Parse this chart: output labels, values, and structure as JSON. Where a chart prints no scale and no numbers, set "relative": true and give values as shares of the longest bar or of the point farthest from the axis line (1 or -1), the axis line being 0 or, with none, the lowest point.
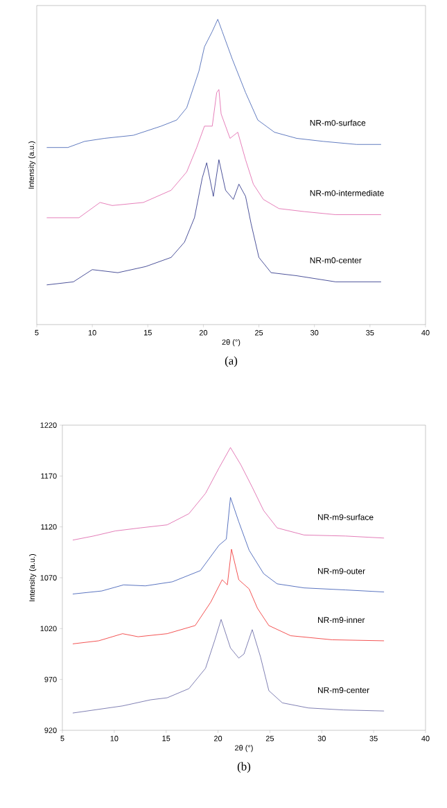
{
  "chart_data": [
    {
      "type": "line",
      "relative": true,
      "xlabel": "2θ (°)",
      "ylabel": "Intensity (a.u.)",
      "xlim": [
        5,
        40
      ],
      "xticks": [
        5,
        10,
        15,
        20,
        25,
        30,
        35,
        40
      ],
      "tick_labels": "x",
      "annotations": [
        "(a)"
      ],
      "series": [
        {
          "name": "NR-m0-surface",
          "color": "#3a5bb0",
          "x": [
            5.9,
            7.8,
            9.3,
            11.1,
            13.7,
            16.2,
            17.6,
            18.5,
            19.6,
            20.1,
            20.8,
            21.3,
            21.7,
            22.6,
            23.8,
            24.9,
            26.4,
            28.4,
            30.8,
            33.8,
            36
          ],
          "values": [
            0.58,
            0.58,
            0.6,
            0.61,
            0.62,
            0.65,
            0.67,
            0.71,
            0.83,
            0.91,
            0.96,
            1.0,
            0.96,
            0.87,
            0.76,
            0.67,
            0.63,
            0.61,
            0.6,
            0.59,
            0.59
          ]
        },
        {
          "name": "NR-m0-intermediate",
          "color": "#e060a8",
          "x": [
            5.9,
            8.8,
            10.7,
            11.8,
            14.6,
            17.1,
            18.5,
            19.4,
            20.1,
            20.8,
            21.2,
            21.4,
            21.6,
            22.4,
            23.1,
            23.8,
            24.5,
            25.4,
            26.8,
            29.1,
            31.9,
            36
          ],
          "values": [
            0.35,
            0.35,
            0.4,
            0.39,
            0.4,
            0.44,
            0.5,
            0.58,
            0.65,
            0.65,
            0.76,
            0.77,
            0.69,
            0.61,
            0.63,
            0.54,
            0.46,
            0.41,
            0.38,
            0.37,
            0.36,
            0.36
          ]
        },
        {
          "name": "NR-m0-center",
          "color": "#1f2780",
          "x": [
            5.9,
            8.3,
            10,
            12.3,
            14.8,
            17.1,
            18.3,
            19.2,
            19.9,
            20.3,
            20.9,
            21.4,
            22,
            22.7,
            23.2,
            23.8,
            24.3,
            25,
            26.1,
            28.4,
            31.9,
            36
          ],
          "values": [
            0.13,
            0.14,
            0.18,
            0.17,
            0.19,
            0.22,
            0.27,
            0.35,
            0.48,
            0.53,
            0.42,
            0.54,
            0.44,
            0.41,
            0.46,
            0.42,
            0.33,
            0.22,
            0.17,
            0.16,
            0.14,
            0.14
          ]
        }
      ]
    },
    {
      "type": "line",
      "xlabel": "2θ (°)",
      "ylabel": "Intensity (a.u.)",
      "xlim": [
        5,
        40
      ],
      "xticks": [
        5,
        10,
        15,
        20,
        25,
        30,
        35,
        40
      ],
      "ylim": [
        920,
        1220
      ],
      "yticks": [
        920,
        970,
        1020,
        1070,
        1120,
        1170,
        1220
      ],
      "annotations": [
        "(b)"
      ],
      "series": [
        {
          "name": "NR-m9-surface",
          "color": "#dc5ca6",
          "x": [
            6,
            8,
            10.1,
            12.5,
            15.1,
            17.2,
            18.8,
            20.1,
            21.2,
            22.2,
            23.3,
            24.4,
            25.7,
            28.3,
            32.3,
            36
          ],
          "values": [
            1107,
            1111,
            1116,
            1119,
            1122,
            1133,
            1153,
            1178,
            1198,
            1181,
            1159,
            1136,
            1119,
            1112,
            1111,
            1109
          ]
        },
        {
          "name": "NR-m9-outer",
          "color": "#3050b0",
          "x": [
            6,
            8.8,
            10.9,
            13,
            15.6,
            18.3,
            20.1,
            20.8,
            21.2,
            22,
            23,
            24.4,
            25.7,
            28.3,
            32.3,
            36
          ],
          "values": [
            1054,
            1057,
            1063,
            1062,
            1066,
            1077,
            1102,
            1108,
            1149,
            1125,
            1097,
            1074,
            1064,
            1060,
            1058,
            1056
          ]
        },
        {
          "name": "NR-m9-inner",
          "color": "#f02828",
          "x": [
            6,
            8.5,
            10.8,
            12.3,
            15.1,
            17.8,
            19.3,
            20.4,
            20.9,
            21.3,
            22,
            23,
            23.8,
            24.9,
            27,
            31,
            36
          ],
          "values": [
            1005,
            1008,
            1015,
            1012,
            1015,
            1023,
            1046,
            1068,
            1063,
            1098,
            1068,
            1059,
            1040,
            1023,
            1013,
            1009,
            1008
          ]
        },
        {
          "name": "NR-m9-center",
          "color": "#6060a0",
          "x": [
            6,
            10.8,
            13.5,
            15.1,
            17.2,
            18.8,
            19.7,
            20.3,
            21.2,
            22,
            22.5,
            23.3,
            24.1,
            24.9,
            26.2,
            28.7,
            32.1,
            36
          ],
          "values": [
            937,
            944,
            950,
            952,
            961,
            981,
            1009,
            1029,
            1001,
            991,
            995,
            1019,
            992,
            959,
            947,
            942,
            940,
            939
          ]
        }
      ]
    }
  ]
}
